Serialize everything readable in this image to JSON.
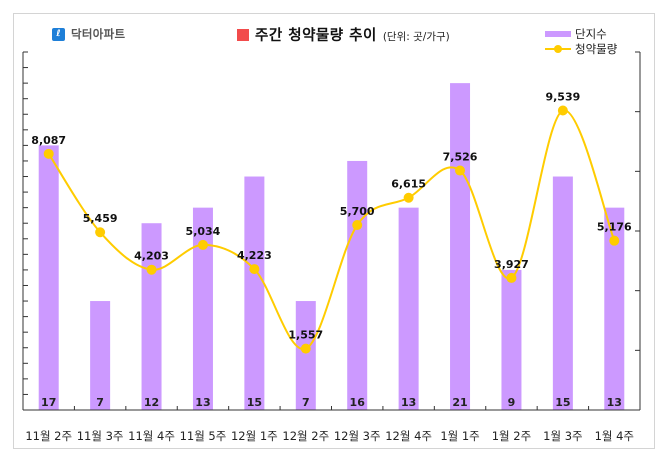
{
  "brand": {
    "icon": "doctor-apart-logo-icon",
    "name": "닥터아파트"
  },
  "chart_data": {
    "type": "bar+line",
    "title": "주간 청약물량 추이",
    "unit_note": "(단위: 곳/가구)",
    "categories": [
      "11월 2주",
      "11월 3주",
      "11월 4주",
      "11월 5주",
      "12월 1주",
      "12월 2주",
      "12월 3주",
      "12월 4주",
      "1월 1주",
      "1월 2주",
      "1월 3주",
      "1월 4주"
    ],
    "series": [
      {
        "name": "단지수",
        "type": "bar",
        "axis": "left",
        "color": "#cc99ff",
        "values": [
          17,
          7,
          12,
          13,
          15,
          7,
          16,
          13,
          21,
          9,
          15,
          13
        ]
      },
      {
        "name": "청약물량",
        "type": "line",
        "axis": "right",
        "color": "#ffcc00",
        "values": [
          8087,
          5459,
          4203,
          5034,
          4223,
          1557,
          5700,
          6615,
          7526,
          3927,
          9539,
          5176
        ],
        "labels": [
          "8,087",
          "5,459",
          "4,203",
          "5,034",
          "4,223",
          "1,557",
          "5,700",
          "6,615",
          "7,526",
          "3,927",
          "9,539",
          "5,176"
        ]
      }
    ],
    "ylim_left": [
      0,
      23
    ],
    "ylim_right": [
      -500,
      11500
    ],
    "left_ticks": 23,
    "right_ticks": 6,
    "legend_position": "top-right",
    "grid": false
  }
}
